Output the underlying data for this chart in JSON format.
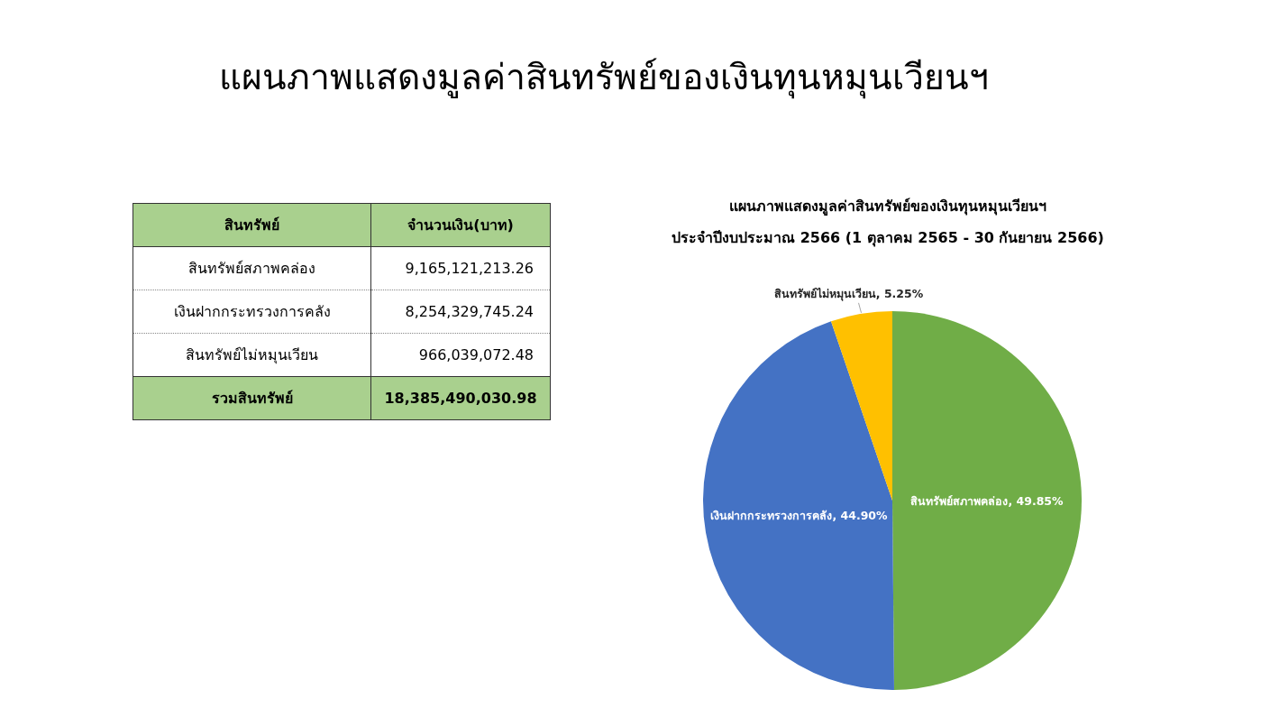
{
  "chart_data": [
    {
      "type": "other",
      "title": "แผนภาพแสดงมูลค่าสินทรัพย์ของเงินทุนหมุนเวียนฯ",
      "categories": [
        "สินทรัพย์สภาพคล่อง",
        "เงินฝากกระทรวงการคลัง",
        "สินทรัพย์ไม่หมุนเวียน"
      ],
      "value_labels": [
        "9,165,121,213.26",
        "8,254,329,745.24",
        "966,039,072.48"
      ],
      "annotations": [
        "สินทรัพย์",
        "จำนวนเงิน(บาท)",
        "รวมสินทรัพย์"
      ],
      "totals": [
        "18,385,490,030.98"
      ]
    },
    {
      "type": "pie",
      "title": "แผนภาพแสดงมูลค่าสินทรัพย์ของเงินทุนหมุนเวียนฯ",
      "subtitle": "ประจำปีงบประมาณ 2566 (1 ตุลาคม 2565 - 30 กันยายน 2566)",
      "categories": [
        "สินทรัพย์สภาพคล่อง",
        "เงินฝากกระทรวงการคลัง",
        "สินทรัพย์ไม่หมุนเวียน"
      ],
      "values": [
        49.85,
        44.9,
        5.25
      ],
      "colors": [
        "#70ad47",
        "#4472c4",
        "#ffc000"
      ],
      "value_labels": [
        "49.85%",
        "44.90%",
        "5.25%"
      ]
    }
  ]
}
